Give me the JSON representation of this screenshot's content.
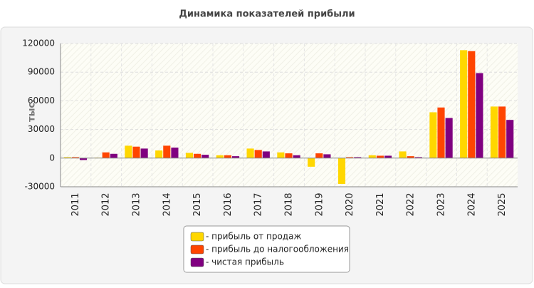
{
  "chart_data": {
    "type": "bar",
    "title": "Динамика показателей прибыли",
    "y_label": "тыс.",
    "categories": [
      "2011",
      "2012",
      "2013",
      "2014",
      "2015",
      "2016",
      "2017",
      "2018",
      "2019",
      "2020",
      "2021",
      "2022",
      "2023",
      "2024",
      "2025"
    ],
    "series": [
      {
        "name": "- прибыль от продаж",
        "color": "#ffd700",
        "values": [
          1000,
          500,
          13000,
          8000,
          5500,
          3000,
          10000,
          6000,
          -9000,
          -27000,
          3000,
          7000,
          48000,
          113000,
          54000
        ]
      },
      {
        "name": "- прибыль до налогообложения",
        "color": "#ff4500",
        "values": [
          1000,
          6000,
          12000,
          13000,
          4500,
          3000,
          8500,
          5000,
          5000,
          1000,
          2500,
          2000,
          53000,
          112000,
          54000
        ]
      },
      {
        "name": "- чистая прибыль",
        "color": "#800080",
        "values": [
          -2000,
          4500,
          10000,
          11000,
          3500,
          2000,
          7000,
          3000,
          4000,
          1000,
          2500,
          1000,
          42000,
          89000,
          40000
        ]
      }
    ],
    "ylim": [
      -30000,
      120000
    ],
    "yticks": [
      -30000,
      0,
      30000,
      60000,
      90000,
      120000
    ],
    "grid": true,
    "legend": "bottom"
  }
}
